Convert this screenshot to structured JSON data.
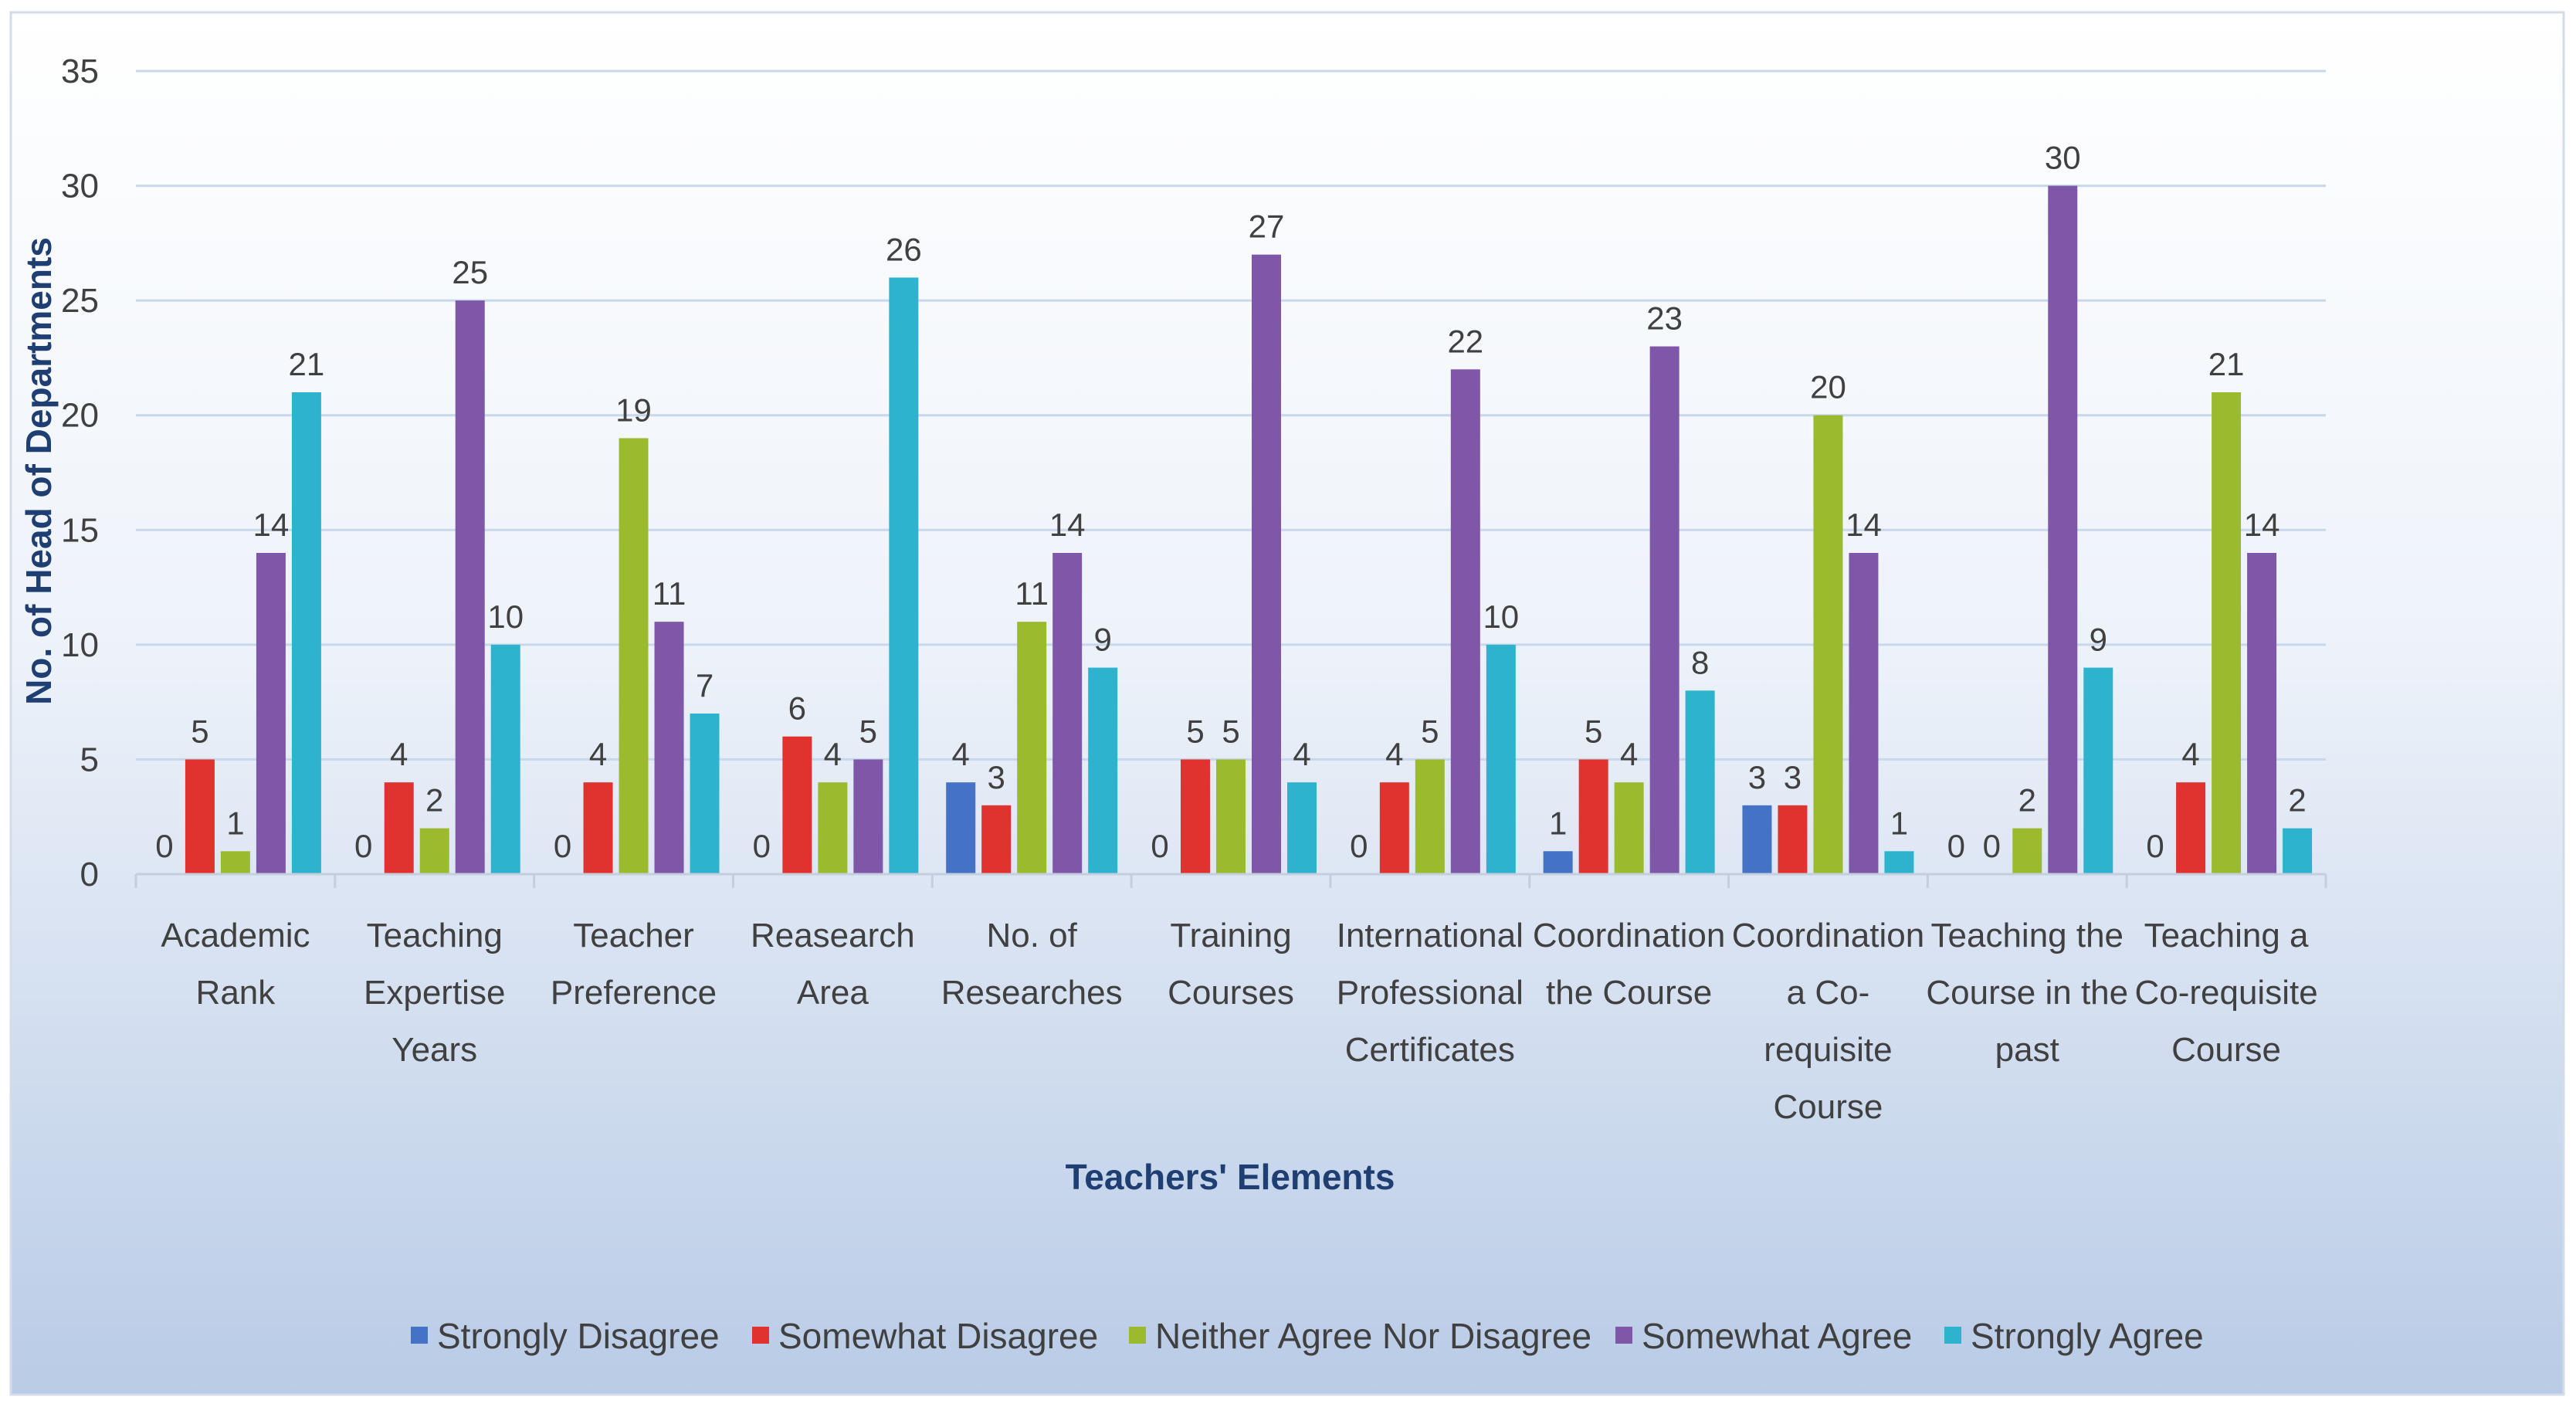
{
  "chart_data": {
    "type": "bar",
    "title": "",
    "xlabel": "Teachers' Elements",
    "ylabel": "No. of Head of Departments",
    "ylim": [
      0,
      35
    ],
    "yticks": [
      0,
      5,
      10,
      15,
      20,
      25,
      30,
      35
    ],
    "grid": true,
    "legend_position": "bottom",
    "categories": [
      [
        "Academic",
        "Rank"
      ],
      [
        "Teaching",
        "Expertise",
        "Years"
      ],
      [
        "Teacher",
        "Preference"
      ],
      [
        "Reasearch",
        "Area"
      ],
      [
        "No. of",
        "Researches"
      ],
      [
        "Training",
        "Courses"
      ],
      [
        "International",
        "Professional",
        "Certificates"
      ],
      [
        "Coordination",
        "the Course"
      ],
      [
        "Coordination",
        "a Co-",
        "requisite",
        "Course"
      ],
      [
        "Teaching the",
        "Course in the",
        "past"
      ],
      [
        "Teaching a",
        "Co-requisite",
        "Course"
      ]
    ],
    "series": [
      {
        "name": "Strongly Disagree",
        "color": "#4472c4",
        "values": [
          0,
          0,
          0,
          0,
          4,
          0,
          0,
          1,
          3,
          0,
          0
        ]
      },
      {
        "name": "Somewhat Disagree",
        "color": "#e0322e",
        "values": [
          5,
          4,
          4,
          6,
          3,
          5,
          4,
          5,
          3,
          0,
          4
        ]
      },
      {
        "name": "Neither Agree Nor Disagree",
        "color": "#9bbb2f",
        "values": [
          1,
          2,
          19,
          4,
          11,
          5,
          5,
          4,
          20,
          2,
          21
        ]
      },
      {
        "name": "Somewhat Agree",
        "color": "#7e57a8",
        "values": [
          14,
          25,
          11,
          5,
          14,
          27,
          22,
          23,
          14,
          30,
          14
        ]
      },
      {
        "name": "Strongly Agree",
        "color": "#2eb3cf",
        "values": [
          21,
          10,
          7,
          26,
          9,
          4,
          10,
          8,
          1,
          9,
          2
        ]
      }
    ]
  }
}
